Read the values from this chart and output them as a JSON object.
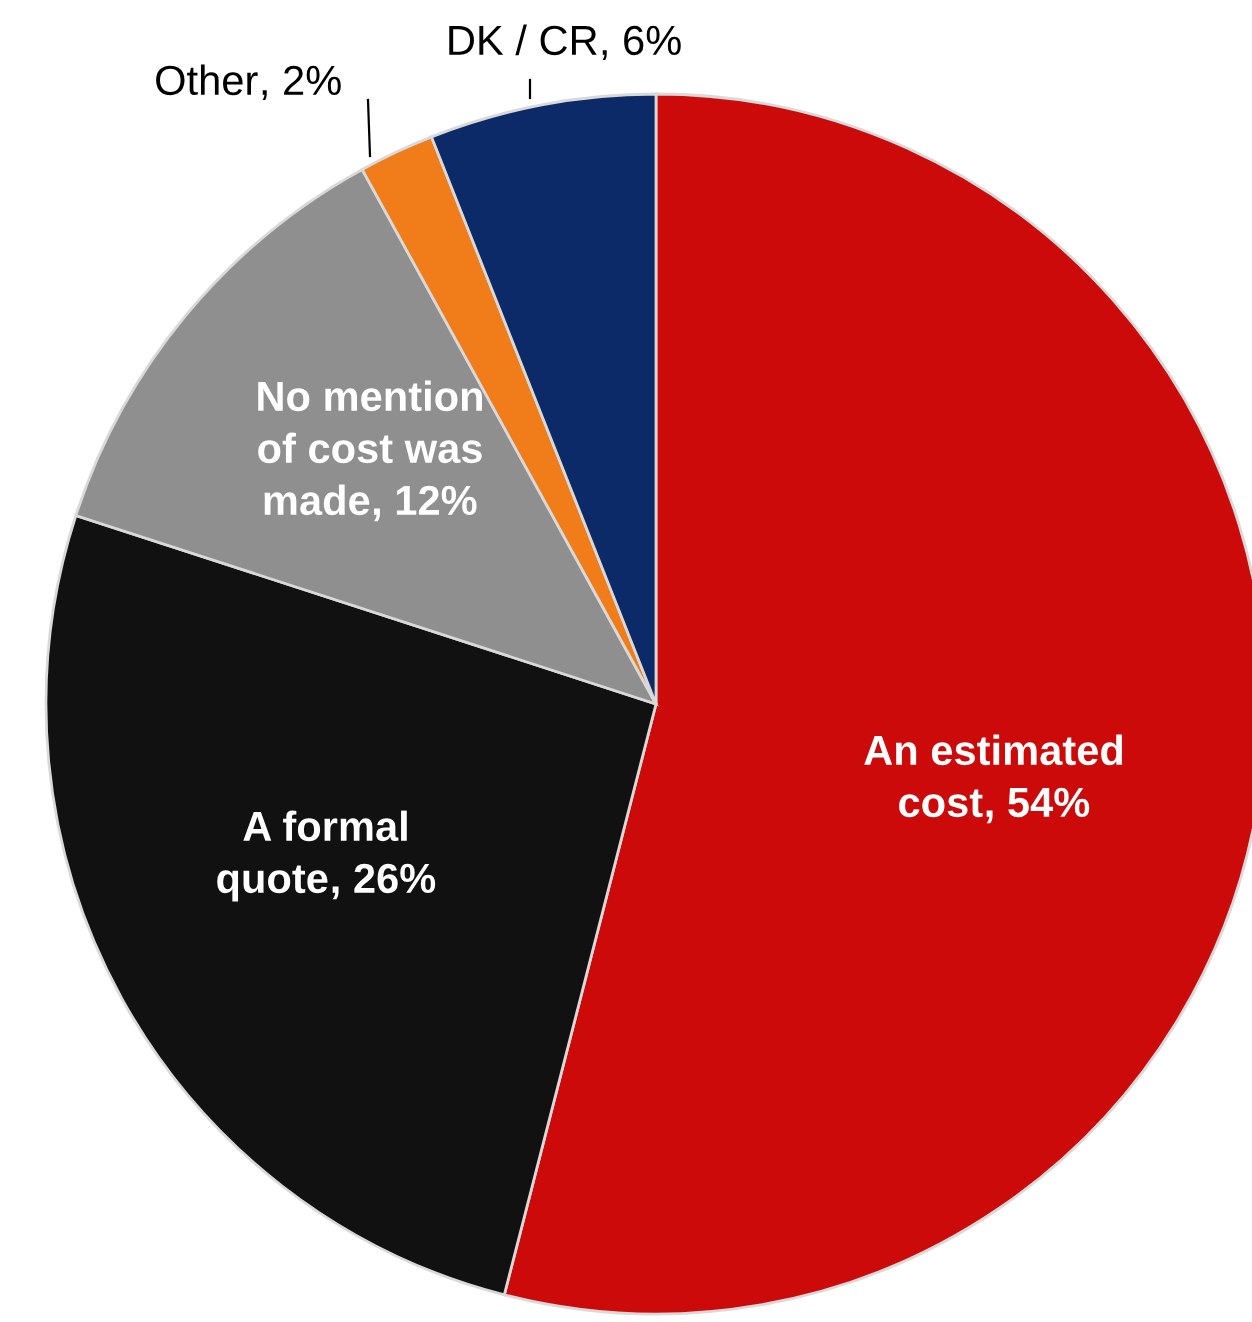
{
  "chart_data": {
    "type": "pie",
    "categories": [
      "An estimated cost",
      "A formal quote",
      "No mention of cost was made",
      "Other",
      "DK / CR"
    ],
    "values": [
      54,
      26,
      12,
      2,
      6
    ],
    "colors": [
      "#cc0a0a",
      "#111111",
      "#8f8f8f",
      "#f07c1a",
      "#0c2a68"
    ],
    "value_labels": [
      ", 54%",
      ", 26%",
      ", 12%",
      ", 2%",
      ", 6%"
    ]
  }
}
